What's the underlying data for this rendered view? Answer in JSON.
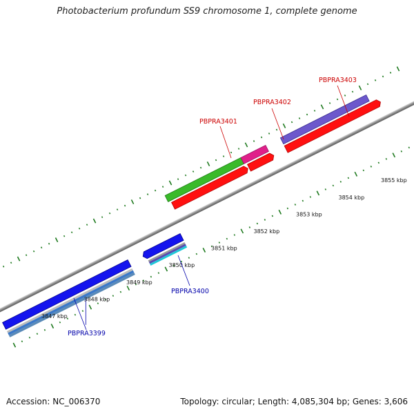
{
  "title": "Photobacterium profundum SS9 chromosome 1, complete genome",
  "accession": "Accession: NC_006370",
  "summary": "Topology: circular; Length: 4,085,304 bp; Genes: 3,606",
  "colors": {
    "backbone": "#8a8a8a",
    "tick": "#1f7a1f",
    "forward_label": "#cc0000",
    "reverse_label": "#0000aa"
  },
  "scale_labels": [
    "3847 kbp",
    "3848 kbp",
    "3849 kbp",
    "3850 kbp",
    "3851 kbp",
    "3852 kbp",
    "3853 kbp",
    "3854 kbp",
    "3855 kbp"
  ],
  "gene_labels": {
    "p3399": "PBPRA3399",
    "p3400": "PBPRA3400",
    "p3401": "PBPRA3401",
    "p3402": "PBPRA3402",
    "p3403": "PBPRA3403"
  }
}
